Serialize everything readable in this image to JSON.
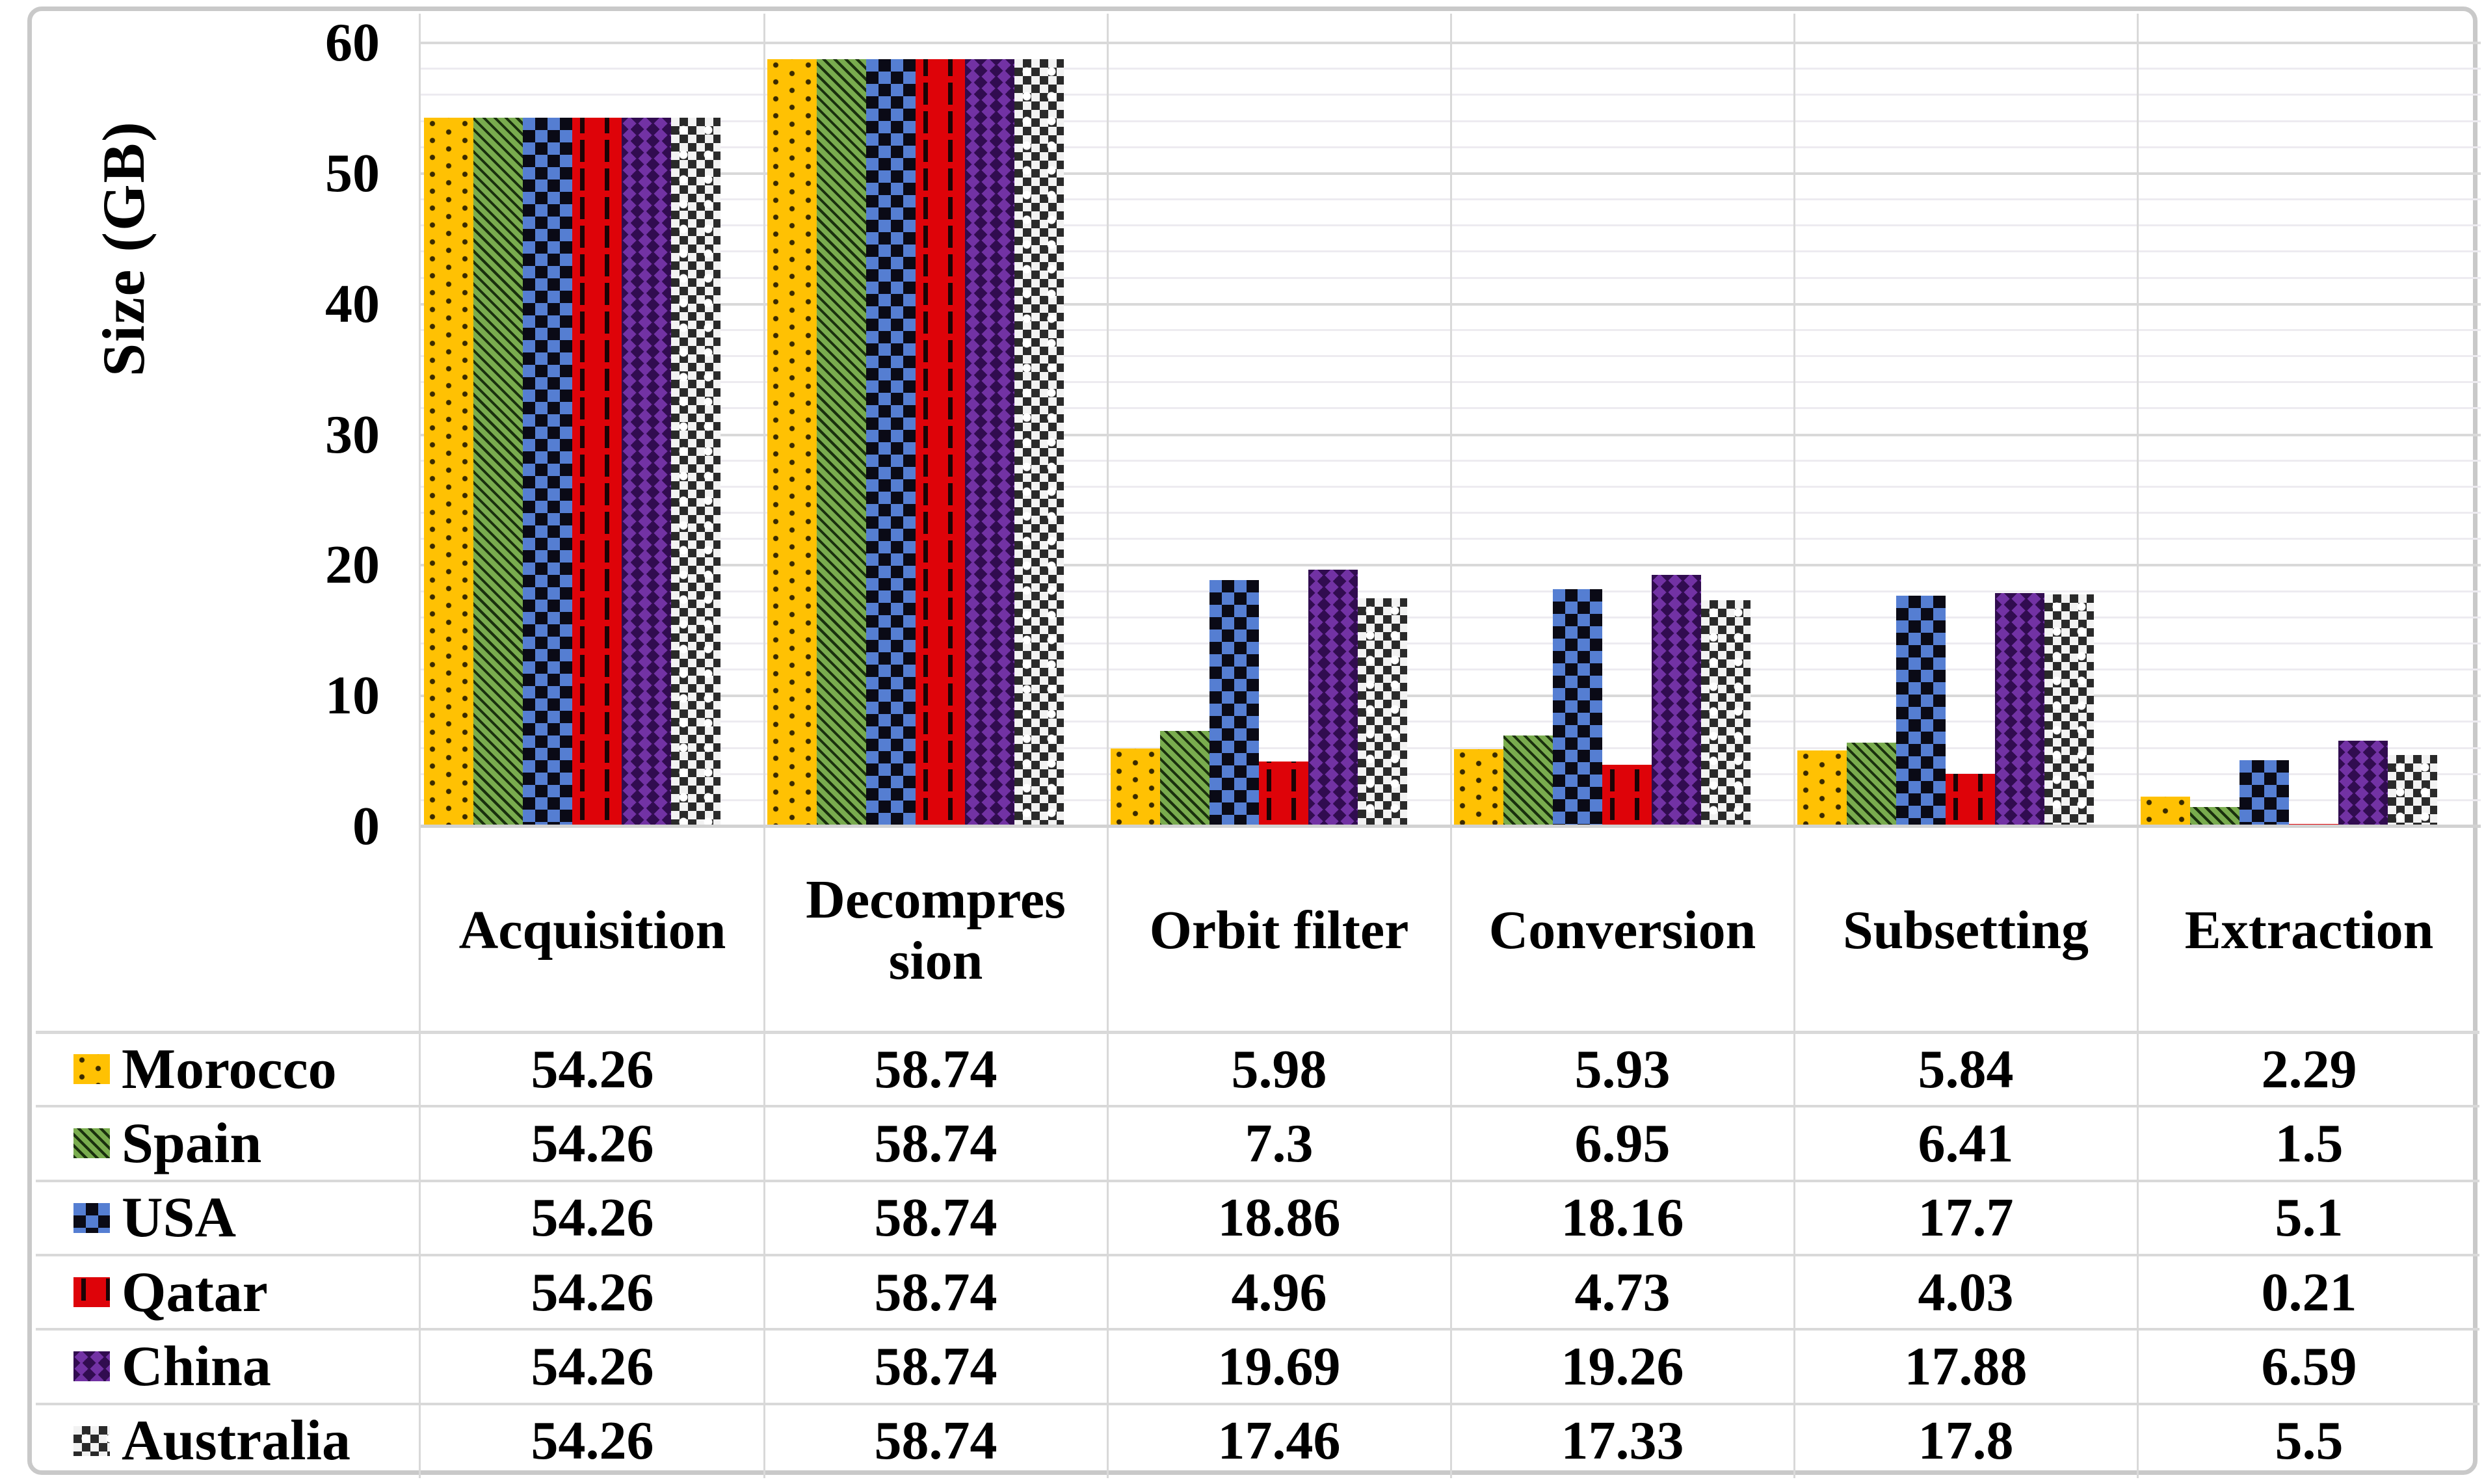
{
  "chart_data": {
    "type": "bar",
    "title": "",
    "ylabel": "Size (GB)",
    "xlabel": "",
    "ylim": [
      0,
      60
    ],
    "y_ticks": [
      60,
      50,
      40,
      30,
      20,
      10,
      0
    ],
    "minor_grid_step_gb": 2,
    "major_grid_step_gb": 10,
    "grid": true,
    "legend_position": "data-table-left",
    "categories": [
      {
        "label": "Acquisition"
      },
      {
        "label": "Decompression",
        "label_lines": [
          "Decompres",
          "sion"
        ]
      },
      {
        "label": "Orbit filter"
      },
      {
        "label": "Conversion"
      },
      {
        "label": "Subsetting"
      },
      {
        "label": "Extraction"
      }
    ],
    "series": [
      {
        "name": "Morocco",
        "key": "morocco",
        "color": "#FFC103",
        "pattern": "gold-dotted-grid",
        "values": [
          54.26,
          58.74,
          5.98,
          5.93,
          5.84,
          2.29
        ]
      },
      {
        "name": "Spain",
        "key": "spain",
        "color": "#79AC4E",
        "pattern": "green-diagonal-stripes",
        "values": [
          54.26,
          58.74,
          7.3,
          6.95,
          6.41,
          1.5
        ]
      },
      {
        "name": "USA",
        "key": "usa",
        "color": "#557ED2",
        "pattern": "blue-black-checkerboard",
        "values": [
          54.26,
          58.74,
          18.86,
          18.16,
          17.7,
          5.1
        ]
      },
      {
        "name": "Qatar",
        "key": "qatar",
        "color": "#DE0309",
        "pattern": "red-dashed-vertical",
        "values": [
          54.26,
          58.74,
          4.96,
          4.73,
          4.03,
          0.21
        ]
      },
      {
        "name": "China",
        "key": "china",
        "color": "#7232A4",
        "pattern": "purple-wave-chevron",
        "values": [
          54.26,
          58.74,
          19.69,
          19.26,
          17.88,
          6.59
        ]
      },
      {
        "name": "Australia",
        "key": "australia",
        "color": "#BFBFBF",
        "pattern": "gray-dotted-checker",
        "values": [
          54.26,
          58.74,
          17.46,
          17.33,
          17.8,
          5.5
        ]
      }
    ]
  }
}
